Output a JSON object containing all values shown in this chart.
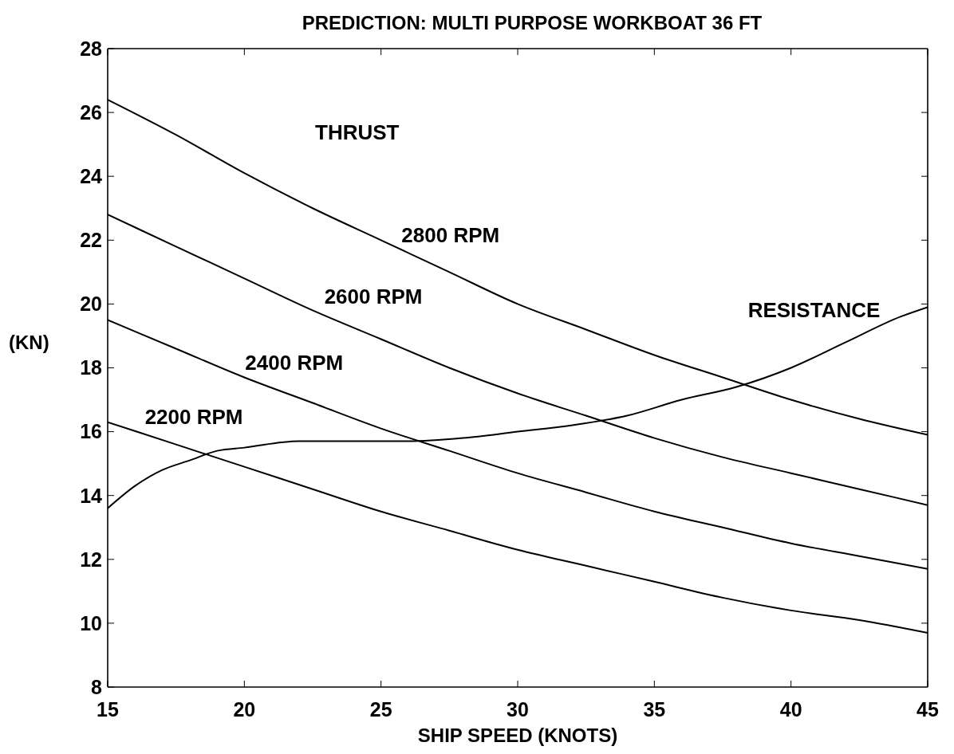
{
  "chart_data": {
    "type": "line",
    "title": "PREDICTION: MULTI PURPOSE WORKBOAT 36 FT",
    "xlabel": "SHIP SPEED (KNOTS)",
    "ylabel": "(KN)",
    "annotations": [
      "THRUST"
    ],
    "series": [
      {
        "name": "2800 RPM",
        "color": "#000000",
        "x": [
          15,
          17.5,
          20,
          22.5,
          25,
          27.5,
          30,
          32.5,
          35,
          37.5,
          40,
          42.5,
          45
        ],
        "values": [
          26.4,
          25.3,
          24.1,
          23.0,
          22.0,
          21.0,
          20.0,
          19.2,
          18.4,
          17.7,
          17.0,
          16.4,
          15.9
        ]
      },
      {
        "name": "2600 RPM",
        "color": "#000000",
        "x": [
          15,
          17.5,
          20,
          22.5,
          25,
          27.5,
          30,
          32.5,
          35,
          37.5,
          40,
          42.5,
          45
        ],
        "values": [
          22.8,
          21.8,
          20.8,
          19.8,
          18.9,
          18.0,
          17.2,
          16.5,
          15.8,
          15.2,
          14.7,
          14.2,
          13.7
        ]
      },
      {
        "name": "2400 RPM",
        "color": "#000000",
        "x": [
          15,
          17.5,
          20,
          22.5,
          25,
          27.5,
          30,
          32.5,
          35,
          37.5,
          40,
          42.5,
          45
        ],
        "values": [
          19.5,
          18.6,
          17.7,
          16.9,
          16.1,
          15.4,
          14.7,
          14.1,
          13.5,
          13.0,
          12.5,
          12.1,
          11.7
        ]
      },
      {
        "name": "2200 RPM",
        "color": "#000000",
        "x": [
          15,
          17.5,
          20,
          22.5,
          25,
          27.5,
          30,
          32.5,
          35,
          37.5,
          40,
          42.5,
          45
        ],
        "values": [
          16.3,
          15.6,
          14.9,
          14.2,
          13.5,
          12.9,
          12.3,
          11.8,
          11.3,
          10.8,
          10.4,
          10.1,
          9.7
        ]
      },
      {
        "name": "RESISTANCE",
        "color": "#000000",
        "x": [
          15,
          16,
          17,
          18,
          19,
          20,
          22,
          24,
          26,
          28,
          30,
          32,
          34,
          36,
          38,
          40,
          42,
          44,
          45
        ],
        "values": [
          13.6,
          14.3,
          14.8,
          15.1,
          15.4,
          15.5,
          15.7,
          15.7,
          15.7,
          15.8,
          16.0,
          16.2,
          16.5,
          17.0,
          17.4,
          18.0,
          18.8,
          19.6,
          19.9
        ]
      }
    ],
    "xlim": [
      15,
      45
    ],
    "ylim": [
      8,
      28
    ],
    "xticks": [
      15,
      20,
      25,
      30,
      35,
      40,
      45
    ],
    "yticks": [
      8,
      10,
      12,
      14,
      16,
      18,
      20,
      22,
      24,
      26,
      28
    ],
    "marker": "none",
    "line_style": "solid"
  }
}
